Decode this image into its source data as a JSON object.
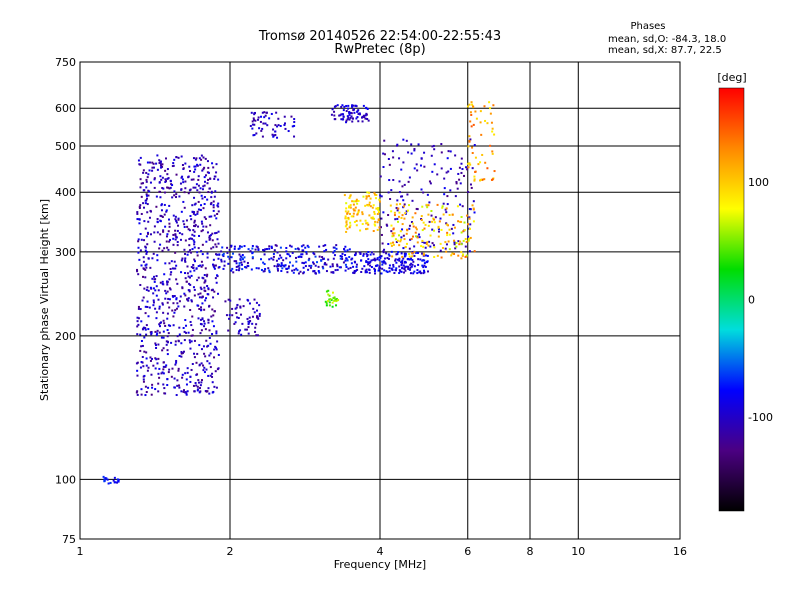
{
  "chart_data": {
    "type": "scatter",
    "title": "Tromsø 20140526 22:54:00-22:55:43",
    "subtitle": "RwPretec (8p)",
    "xlabel": "Frequency [MHz]",
    "ylabel": "Stationary phase Virtual Height [km]",
    "x_scale": "log",
    "y_scale": "log",
    "xlim": [
      1,
      16
    ],
    "ylim": [
      75,
      750
    ],
    "x_ticks": [
      1,
      2,
      4,
      6,
      8,
      10,
      16
    ],
    "y_ticks": [
      75,
      100,
      200,
      300,
      400,
      500,
      600,
      750
    ],
    "grid": true,
    "stats": {
      "heading": "Phases",
      "line_o": "mean, sd,O: -84.3, 18.0",
      "line_x": "mean, sd,X:  87.7, 22.5"
    },
    "colorbar": {
      "label": "[deg]",
      "range": [
        -180,
        180
      ],
      "ticks": [
        100,
        0,
        -100
      ],
      "colors": [
        "#ff0000",
        "#ff8800",
        "#ffff00",
        "#00dd00",
        "#00dddd",
        "#0000ff",
        "#4b0082",
        "#000000"
      ]
    },
    "series": [
      {
        "x_range": [
          1.3,
          1.9
        ],
        "y_range": [
          150,
          480
        ],
        "phase_range": [
          -130,
          -80
        ],
        "n": 900
      },
      {
        "x_range": [
          1.9,
          3.5
        ],
        "y_range": [
          270,
          310
        ],
        "phase_range": [
          -120,
          -60
        ],
        "n": 260
      },
      {
        "x_range": [
          3.5,
          5.0
        ],
        "y_range": [
          270,
          300
        ],
        "phase_range": [
          -110,
          -70
        ],
        "n": 200
      },
      {
        "x_range": [
          4.0,
          6.2
        ],
        "y_range": [
          300,
          520
        ],
        "phase_range": [
          -130,
          -80
        ],
        "n": 180
      },
      {
        "x_range": [
          4.2,
          6.2
        ],
        "y_range": [
          290,
          380
        ],
        "phase_range": [
          60,
          140
        ],
        "n": 160
      },
      {
        "x_range": [
          3.4,
          4.0
        ],
        "y_range": [
          330,
          400
        ],
        "phase_range": [
          70,
          130
        ],
        "n": 110
      },
      {
        "x_range": [
          2.2,
          2.7
        ],
        "y_range": [
          520,
          590
        ],
        "phase_range": [
          -120,
          -80
        ],
        "n": 60
      },
      {
        "x_range": [
          3.2,
          3.8
        ],
        "y_range": [
          560,
          610
        ],
        "phase_range": [
          -120,
          -80
        ],
        "n": 80
      },
      {
        "x_range": [
          6.0,
          6.8
        ],
        "y_range": [
          420,
          620
        ],
        "phase_range": [
          80,
          150
        ],
        "n": 60
      },
      {
        "x_range": [
          1.1,
          1.2
        ],
        "y_range": [
          98,
          102
        ],
        "phase_range": [
          -90,
          -60
        ],
        "n": 20
      },
      {
        "x_range": [
          1.95,
          2.3
        ],
        "y_range": [
          200,
          240
        ],
        "phase_range": [
          -120,
          -90
        ],
        "n": 60
      },
      {
        "x_range": [
          3.1,
          3.3
        ],
        "y_range": [
          230,
          250
        ],
        "phase_range": [
          20,
          70
        ],
        "n": 25
      }
    ]
  }
}
